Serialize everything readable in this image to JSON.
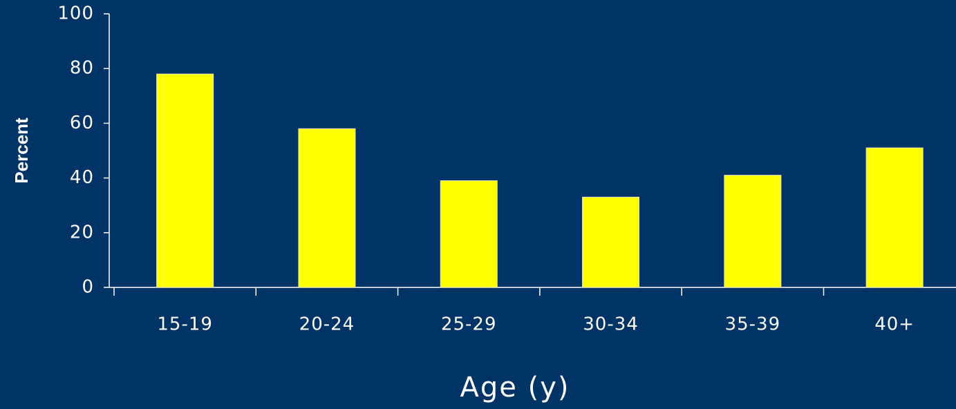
{
  "chart_data": {
    "type": "bar",
    "x_label": "Age (y)",
    "y_label": "Percent",
    "categories": [
      "15-19",
      "20-24",
      "25-29",
      "30-34",
      "35-39",
      "40+"
    ],
    "values": [
      78,
      58,
      39,
      33,
      41,
      51
    ],
    "color": "#ffff00",
    "ylim": [
      0,
      100
    ],
    "yticks": [
      0,
      20,
      40,
      60,
      80,
      100
    ],
    "grid": false
  }
}
